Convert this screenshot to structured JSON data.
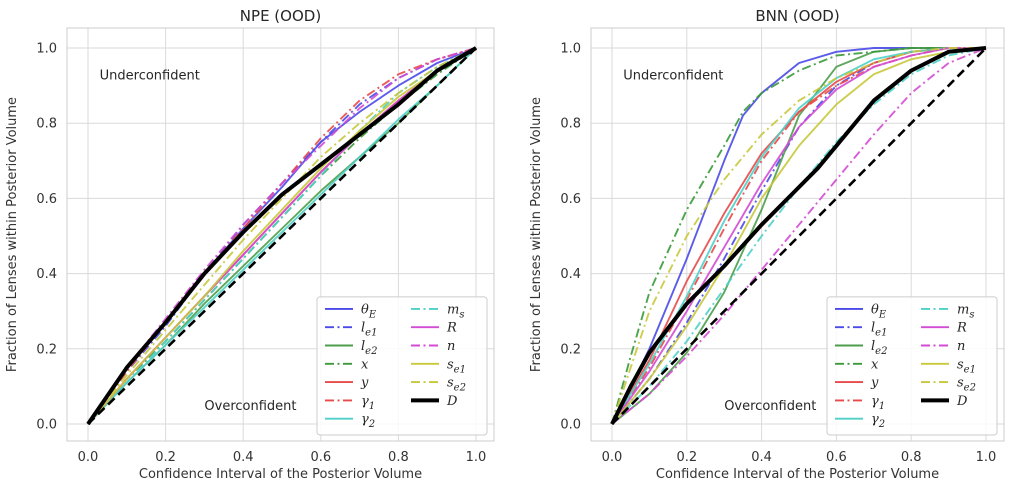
{
  "chart_data": [
    {
      "type": "line",
      "title": "NPE (OOD)",
      "xlabel": "Confidence Interval of the Posterior Volume",
      "ylabel": "Fraction of Lenses within Posterior Volume",
      "xlim": [
        0,
        1
      ],
      "ylim": [
        0,
        1
      ],
      "xticks": [
        "0.0",
        "0.2",
        "0.4",
        "0.6",
        "0.8",
        "1.0"
      ],
      "yticks": [
        "0.0",
        "0.2",
        "0.4",
        "0.6",
        "0.8",
        "1.0"
      ],
      "grid": true,
      "legend_placement": "lower-right",
      "annotations": [
        {
          "text": "Underconfident",
          "x": 0.03,
          "y": 0.93
        },
        {
          "text": "Overconfident",
          "x": 0.3,
          "y": 0.05
        }
      ],
      "series": [
        {
          "name": "θ_E",
          "color": "#4a4ae8",
          "dash": "solid",
          "x": [
            0,
            0.1,
            0.2,
            0.3,
            0.4,
            0.5,
            0.6,
            0.7,
            0.8,
            0.9,
            1.0
          ],
          "y": [
            0,
            0.15,
            0.27,
            0.4,
            0.52,
            0.63,
            0.75,
            0.83,
            0.9,
            0.96,
            1.0
          ]
        },
        {
          "name": "l_e1",
          "color": "#4a4ae8",
          "dash": "dashdot",
          "x": [
            0,
            0.1,
            0.2,
            0.3,
            0.4,
            0.5,
            0.6,
            0.7,
            0.8,
            0.9,
            1.0
          ],
          "y": [
            0,
            0.14,
            0.26,
            0.4,
            0.53,
            0.64,
            0.75,
            0.85,
            0.92,
            0.97,
            1.0
          ]
        },
        {
          "name": "l_e2",
          "color": "#4c9e4c",
          "dash": "solid",
          "x": [
            0,
            0.1,
            0.2,
            0.3,
            0.4,
            0.5,
            0.6,
            0.7,
            0.8,
            0.9,
            1.0
          ],
          "y": [
            0,
            0.11,
            0.21,
            0.32,
            0.42,
            0.52,
            0.62,
            0.71,
            0.8,
            0.9,
            1.0
          ]
        },
        {
          "name": "x",
          "color": "#3a9a3a",
          "dash": "dashdot",
          "x": [
            0,
            0.1,
            0.2,
            0.3,
            0.4,
            0.5,
            0.6,
            0.7,
            0.8,
            0.9,
            1.0
          ],
          "y": [
            0,
            0.12,
            0.22,
            0.33,
            0.44,
            0.55,
            0.66,
            0.76,
            0.85,
            0.93,
            1.0
          ]
        },
        {
          "name": "y",
          "color": "#e84a4a",
          "dash": "solid",
          "x": [
            0,
            0.1,
            0.2,
            0.3,
            0.4,
            0.5,
            0.6,
            0.7,
            0.8,
            0.9,
            1.0
          ],
          "y": [
            0,
            0.12,
            0.23,
            0.34,
            0.45,
            0.56,
            0.67,
            0.77,
            0.86,
            0.94,
            1.0
          ]
        },
        {
          "name": "γ_1",
          "color": "#e84a4a",
          "dash": "dashdot",
          "x": [
            0,
            0.1,
            0.2,
            0.3,
            0.4,
            0.5,
            0.6,
            0.7,
            0.8,
            0.9,
            1.0
          ],
          "y": [
            0,
            0.14,
            0.27,
            0.4,
            0.52,
            0.64,
            0.76,
            0.86,
            0.93,
            0.97,
            1.0
          ]
        },
        {
          "name": "γ_2",
          "color": "#4cd0c8",
          "dash": "solid",
          "x": [
            0,
            0.1,
            0.2,
            0.3,
            0.4,
            0.5,
            0.6,
            0.7,
            0.8,
            0.9,
            1.0
          ],
          "y": [
            0,
            0.11,
            0.21,
            0.31,
            0.41,
            0.51,
            0.61,
            0.71,
            0.81,
            0.9,
            1.0
          ]
        },
        {
          "name": "m_s",
          "color": "#4cd0c8",
          "dash": "dashdot",
          "x": [
            0,
            0.1,
            0.2,
            0.3,
            0.4,
            0.5,
            0.6,
            0.7,
            0.8,
            0.9,
            1.0
          ],
          "y": [
            0,
            0.11,
            0.22,
            0.33,
            0.44,
            0.55,
            0.66,
            0.78,
            0.88,
            0.95,
            1.0
          ]
        },
        {
          "name": "R",
          "color": "#d44ad4",
          "dash": "solid",
          "x": [
            0,
            0.1,
            0.2,
            0.3,
            0.4,
            0.5,
            0.6,
            0.7,
            0.8,
            0.9,
            1.0
          ],
          "y": [
            0,
            0.12,
            0.23,
            0.34,
            0.45,
            0.56,
            0.67,
            0.77,
            0.86,
            0.94,
            1.0
          ]
        },
        {
          "name": "n",
          "color": "#d44ad4",
          "dash": "dashdot",
          "x": [
            0,
            0.1,
            0.2,
            0.3,
            0.4,
            0.5,
            0.6,
            0.7,
            0.8,
            0.9,
            1.0
          ],
          "y": [
            0,
            0.15,
            0.28,
            0.41,
            0.53,
            0.64,
            0.74,
            0.84,
            0.92,
            0.97,
            1.0
          ]
        },
        {
          "name": "s_e1",
          "color": "#c8c83c",
          "dash": "solid",
          "x": [
            0,
            0.1,
            0.2,
            0.3,
            0.4,
            0.5,
            0.6,
            0.7,
            0.8,
            0.9,
            1.0
          ],
          "y": [
            0,
            0.12,
            0.23,
            0.34,
            0.46,
            0.57,
            0.68,
            0.78,
            0.87,
            0.94,
            1.0
          ]
        },
        {
          "name": "s_e2",
          "color": "#c8c83c",
          "dash": "dashdot",
          "x": [
            0,
            0.1,
            0.2,
            0.3,
            0.4,
            0.5,
            0.6,
            0.7,
            0.8,
            0.9,
            1.0
          ],
          "y": [
            0,
            0.13,
            0.25,
            0.37,
            0.49,
            0.6,
            0.71,
            0.8,
            0.88,
            0.95,
            1.0
          ]
        },
        {
          "name": "D",
          "color": "#000000",
          "dash": "solid",
          "bold": true,
          "x": [
            0,
            0.1,
            0.2,
            0.3,
            0.4,
            0.5,
            0.6,
            0.7,
            0.8,
            0.9,
            1.0
          ],
          "y": [
            0,
            0.15,
            0.27,
            0.4,
            0.51,
            0.61,
            0.69,
            0.77,
            0.85,
            0.94,
            1.0
          ]
        },
        {
          "name": "",
          "color": "#000000",
          "dash": "dashed",
          "reference": true,
          "x": [
            0,
            1
          ],
          "y": [
            0,
            1
          ]
        }
      ]
    },
    {
      "type": "line",
      "title": "BNN (OOD)",
      "xlabel": "Confidence Interval of the Posterior Volume",
      "ylabel": "Fraction of Lenses within Posterior Volume",
      "xlim": [
        0,
        1
      ],
      "ylim": [
        0,
        1
      ],
      "xticks": [
        "0.0",
        "0.2",
        "0.4",
        "0.6",
        "0.8",
        "1.0"
      ],
      "yticks": [
        "0.0",
        "0.2",
        "0.4",
        "0.6",
        "0.8",
        "1.0"
      ],
      "grid": true,
      "legend_placement": "lower-right",
      "annotations": [
        {
          "text": "Underconfident",
          "x": 0.03,
          "y": 0.93
        },
        {
          "text": "Overconfident",
          "x": 0.3,
          "y": 0.05
        }
      ],
      "series": [
        {
          "name": "θ_E",
          "color": "#4a4ae8",
          "dash": "solid",
          "x": [
            0,
            0.1,
            0.2,
            0.3,
            0.35,
            0.4,
            0.5,
            0.6,
            0.7,
            0.8,
            0.9,
            1.0
          ],
          "y": [
            0,
            0.2,
            0.44,
            0.7,
            0.82,
            0.88,
            0.96,
            0.99,
            1.0,
            1.0,
            1.0,
            1.0
          ]
        },
        {
          "name": "l_e1",
          "color": "#4a4ae8",
          "dash": "dashdot",
          "x": [
            0,
            0.1,
            0.2,
            0.3,
            0.4,
            0.5,
            0.6,
            0.7,
            0.8,
            0.9,
            1.0
          ],
          "y": [
            0,
            0.12,
            0.27,
            0.44,
            0.62,
            0.79,
            0.9,
            0.96,
            0.99,
            1.0,
            1.0
          ]
        },
        {
          "name": "l_e2",
          "color": "#4c9e4c",
          "dash": "solid",
          "x": [
            0,
            0.1,
            0.2,
            0.3,
            0.4,
            0.5,
            0.6,
            0.7,
            0.8,
            0.9,
            1.0
          ],
          "y": [
            0,
            0.08,
            0.19,
            0.35,
            0.57,
            0.82,
            0.95,
            0.99,
            1.0,
            1.0,
            1.0
          ]
        },
        {
          "name": "x",
          "color": "#3a9a3a",
          "dash": "dashdot",
          "x": [
            0,
            0.05,
            0.1,
            0.2,
            0.3,
            0.35,
            0.4,
            0.5,
            0.6,
            0.7,
            0.8,
            0.9,
            1.0
          ],
          "y": [
            0,
            0.18,
            0.35,
            0.57,
            0.74,
            0.83,
            0.88,
            0.94,
            0.98,
            0.99,
            1.0,
            1.0,
            1.0
          ]
        },
        {
          "name": "y",
          "color": "#e84a4a",
          "dash": "solid",
          "x": [
            0,
            0.1,
            0.2,
            0.3,
            0.4,
            0.5,
            0.6,
            0.7,
            0.8,
            0.9,
            1.0
          ],
          "y": [
            0,
            0.17,
            0.38,
            0.56,
            0.72,
            0.83,
            0.91,
            0.96,
            0.99,
            1.0,
            1.0
          ]
        },
        {
          "name": "γ_1",
          "color": "#e84a4a",
          "dash": "dashdot",
          "x": [
            0,
            0.1,
            0.2,
            0.3,
            0.4,
            0.5,
            0.6,
            0.7,
            0.8,
            0.9,
            1.0
          ],
          "y": [
            0,
            0.15,
            0.33,
            0.52,
            0.7,
            0.83,
            0.9,
            0.95,
            0.98,
            1.0,
            1.0
          ]
        },
        {
          "name": "γ_2",
          "color": "#4cd0c8",
          "dash": "solid",
          "x": [
            0,
            0.1,
            0.2,
            0.3,
            0.4,
            0.5,
            0.6,
            0.7,
            0.8,
            0.9,
            1.0
          ],
          "y": [
            0,
            0.16,
            0.34,
            0.54,
            0.71,
            0.84,
            0.92,
            0.97,
            0.99,
            1.0,
            1.0
          ]
        },
        {
          "name": "m_s",
          "color": "#4cd0c8",
          "dash": "dashdot",
          "x": [
            0,
            0.1,
            0.2,
            0.3,
            0.4,
            0.5,
            0.6,
            0.7,
            0.8,
            0.9,
            1.0
          ],
          "y": [
            0,
            0.1,
            0.22,
            0.36,
            0.5,
            0.63,
            0.75,
            0.85,
            0.93,
            0.98,
            1.0
          ]
        },
        {
          "name": "R",
          "color": "#d44ad4",
          "dash": "solid",
          "x": [
            0,
            0.1,
            0.2,
            0.3,
            0.4,
            0.5,
            0.6,
            0.7,
            0.8,
            0.9,
            1.0
          ],
          "y": [
            0,
            0.14,
            0.3,
            0.47,
            0.64,
            0.79,
            0.89,
            0.95,
            0.98,
            1.0,
            1.0
          ]
        },
        {
          "name": "n",
          "color": "#d44ad4",
          "dash": "dashdot",
          "x": [
            0,
            0.1,
            0.2,
            0.3,
            0.4,
            0.5,
            0.6,
            0.7,
            0.8,
            0.9,
            1.0
          ],
          "y": [
            0,
            0.08,
            0.18,
            0.29,
            0.41,
            0.53,
            0.65,
            0.77,
            0.88,
            0.96,
            1.0
          ]
        },
        {
          "name": "s_e1",
          "color": "#c8c83c",
          "dash": "solid",
          "x": [
            0,
            0.1,
            0.2,
            0.3,
            0.4,
            0.5,
            0.6,
            0.7,
            0.8,
            0.9,
            1.0
          ],
          "y": [
            0,
            0.12,
            0.26,
            0.42,
            0.6,
            0.74,
            0.85,
            0.93,
            0.97,
            0.99,
            1.0
          ]
        },
        {
          "name": "s_e2",
          "color": "#c8c83c",
          "dash": "dashdot",
          "x": [
            0,
            0.05,
            0.1,
            0.2,
            0.3,
            0.4,
            0.5,
            0.6,
            0.7,
            0.8,
            0.9,
            1.0
          ],
          "y": [
            0,
            0.15,
            0.3,
            0.5,
            0.65,
            0.77,
            0.86,
            0.92,
            0.96,
            0.99,
            1.0,
            1.0
          ]
        },
        {
          "name": "D",
          "color": "#000000",
          "dash": "solid",
          "bold": true,
          "x": [
            0,
            0.05,
            0.1,
            0.2,
            0.3,
            0.4,
            0.5,
            0.55,
            0.6,
            0.7,
            0.8,
            0.9,
            1.0
          ],
          "y": [
            0,
            0.1,
            0.19,
            0.32,
            0.42,
            0.53,
            0.63,
            0.68,
            0.74,
            0.86,
            0.94,
            0.99,
            1.0
          ]
        },
        {
          "name": "",
          "color": "#000000",
          "dash": "dashed",
          "reference": true,
          "x": [
            0,
            1
          ],
          "y": [
            0,
            1
          ]
        }
      ]
    }
  ]
}
